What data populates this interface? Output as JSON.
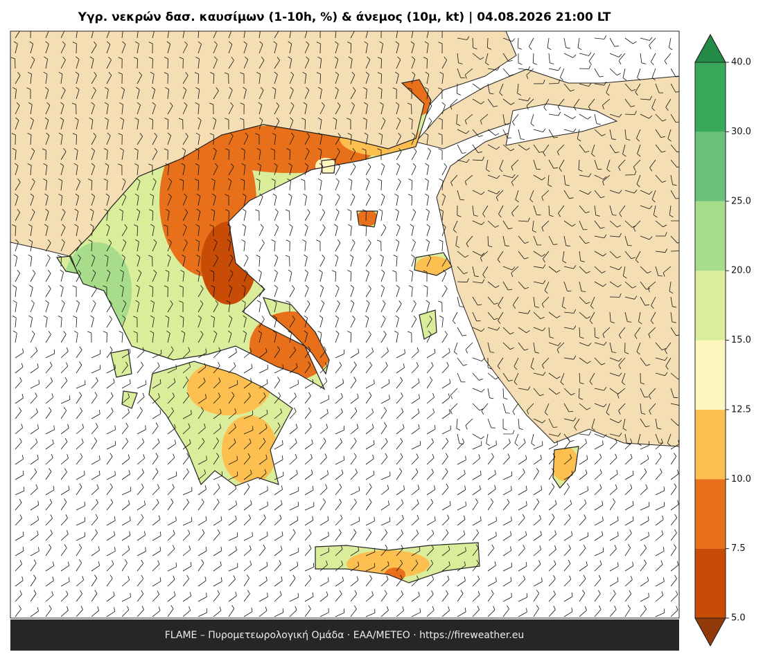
{
  "title": "Υγρ. νεκρών δασ. καυσίμων (1-10h, %) & άνεμος (10μ, kt)  |  04.08.2026 21:00 LT",
  "footer": "FLAME – Πυρομετεωρολογική Ομάδα · ΕΑΑ/METEO · https://fireweather.eu",
  "colorbar": {
    "ticks": [
      {
        "value": 5,
        "label": "5.0"
      },
      {
        "value": 7.5,
        "label": "7.5"
      },
      {
        "value": 10,
        "label": "10.0"
      },
      {
        "value": 12.5,
        "label": "12.5"
      },
      {
        "value": 15,
        "label": "15.0"
      },
      {
        "value": 20,
        "label": "20.0"
      },
      {
        "value": 25,
        "label": "25.0"
      },
      {
        "value": 30,
        "label": "30.0"
      },
      {
        "value": 40,
        "label": "40.0"
      }
    ],
    "colors": [
      "#c84b06",
      "#e8701a",
      "#fdbf4f",
      "#fff6bf",
      "#d9ed9a",
      "#a6dc8a",
      "#6cc07a",
      "#3aa85a"
    ],
    "under_color": "#933a0a",
    "over_color": "#238b45"
  }
}
